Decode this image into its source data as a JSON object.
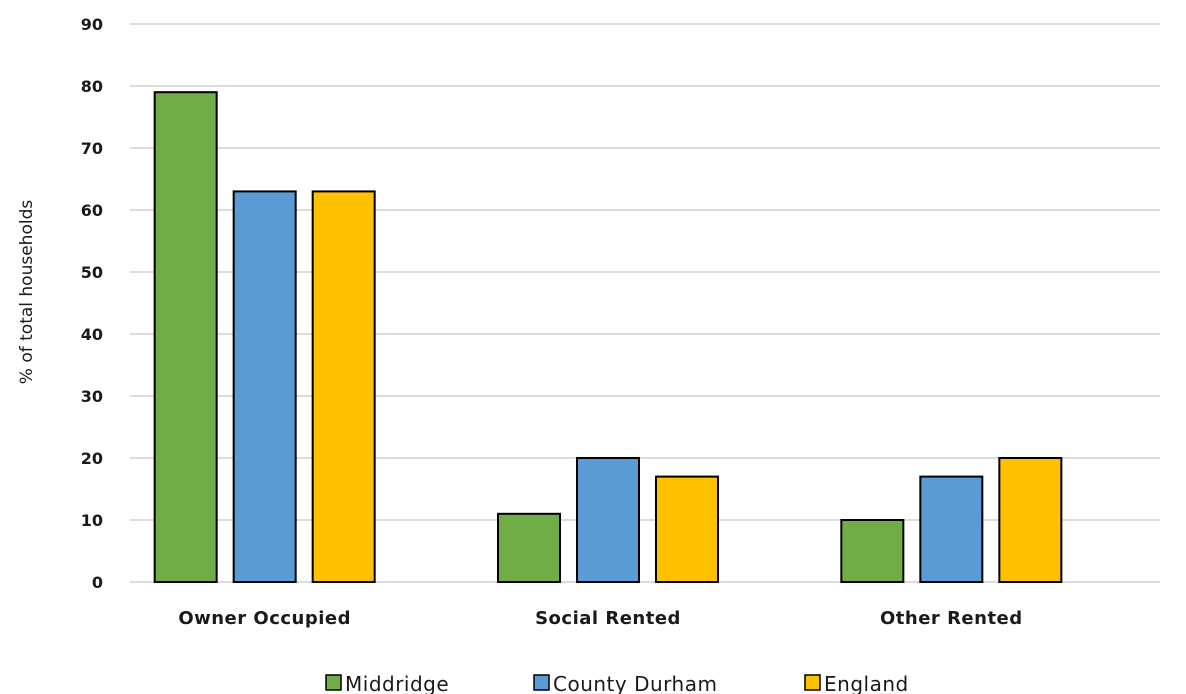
{
  "chart_data": {
    "type": "bar",
    "title": "",
    "xlabel": "",
    "ylabel": "% of total households",
    "ylim": [
      0,
      90
    ],
    "yticks": [
      0,
      10,
      20,
      30,
      40,
      50,
      60,
      70,
      80,
      90
    ],
    "grid": true,
    "legend_position": "bottom",
    "categories": [
      "Owner Occupied",
      "Social Rented",
      "Other Rented"
    ],
    "series": [
      {
        "name": "Middridge",
        "color": "#70ad47",
        "values": [
          79,
          11,
          10
        ]
      },
      {
        "name": "County Durham",
        "color": "#5b9bd5",
        "values": [
          63,
          20,
          17
        ]
      },
      {
        "name": "England",
        "color": "#ffc000",
        "values": [
          63,
          17,
          20
        ]
      }
    ]
  }
}
